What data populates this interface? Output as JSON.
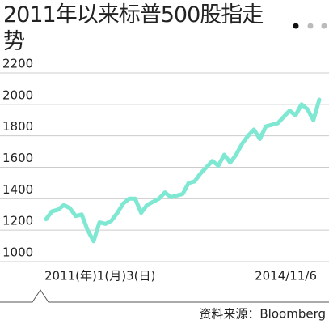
{
  "chart_data": {
    "type": "line",
    "title": "2011年以来标普500股指走势",
    "categories": [
      "2011(年)1(月)3(日)",
      null,
      null,
      null,
      null,
      null,
      null,
      null,
      null,
      null,
      null,
      null,
      null,
      null,
      null,
      null,
      null,
      null,
      null,
      null,
      null,
      null,
      null,
      null,
      null,
      null,
      null,
      null,
      null,
      null,
      null,
      null,
      null,
      null,
      null,
      null,
      null,
      null,
      null,
      null,
      null,
      null,
      null,
      null,
      null,
      null,
      "2014/11/6"
    ],
    "values": [
      1270,
      1320,
      1330,
      1360,
      1340,
      1290,
      1300,
      1200,
      1130,
      1250,
      1240,
      1260,
      1310,
      1370,
      1400,
      1400,
      1310,
      1360,
      1380,
      1400,
      1440,
      1410,
      1420,
      1430,
      1500,
      1510,
      1560,
      1600,
      1640,
      1610,
      1680,
      1630,
      1680,
      1750,
      1800,
      1840,
      1780,
      1860,
      1870,
      1880,
      1920,
      1960,
      1930,
      2000,
      1970,
      1900,
      2030
    ],
    "color": "#7fe8d2",
    "ylim": [
      1000,
      2200
    ],
    "yticks": [
      1000,
      1200,
      1400,
      1600,
      1800,
      2000,
      2200
    ],
    "grid": true,
    "source": "资料来源：Bloomberg"
  }
}
